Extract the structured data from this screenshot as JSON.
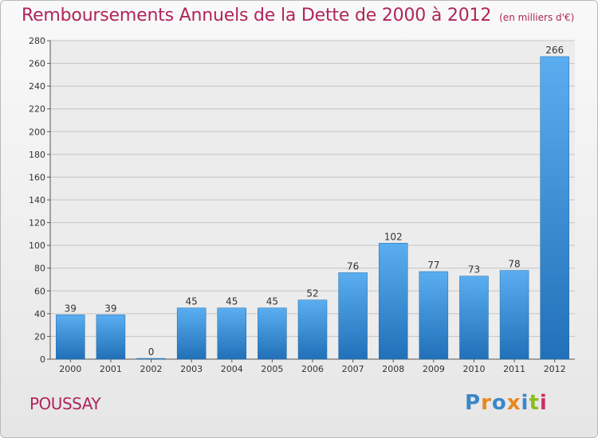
{
  "header": {
    "title": "Remboursements Annuels de la Dette de 2000 à 2012",
    "unit": "(en milliers d'€)"
  },
  "footer": {
    "city": "POUSSAY",
    "logo_text": "Proxiti"
  },
  "colors": {
    "title": "#b0255a",
    "bar_light": "#5aaef0",
    "bar_dark": "#2170b8",
    "logo": [
      "#3a87c8",
      "#e8871e",
      "#3a87c8",
      "#e8871e",
      "#3a87c8",
      "#8cbc1e",
      "#d42c64"
    ]
  },
  "chart_data": {
    "type": "bar",
    "categories": [
      "2000",
      "2001",
      "2002",
      "2003",
      "2004",
      "2005",
      "2006",
      "2007",
      "2008",
      "2009",
      "2010",
      "2011",
      "2012"
    ],
    "values": [
      39,
      39,
      0,
      45,
      45,
      45,
      52,
      76,
      102,
      77,
      73,
      78,
      266
    ],
    "ylim": [
      0,
      280
    ],
    "yticks": [
      0,
      20,
      40,
      60,
      80,
      100,
      120,
      140,
      160,
      180,
      200,
      220,
      240,
      260,
      280
    ],
    "grid": true,
    "xlabel": "",
    "ylabel": ""
  }
}
